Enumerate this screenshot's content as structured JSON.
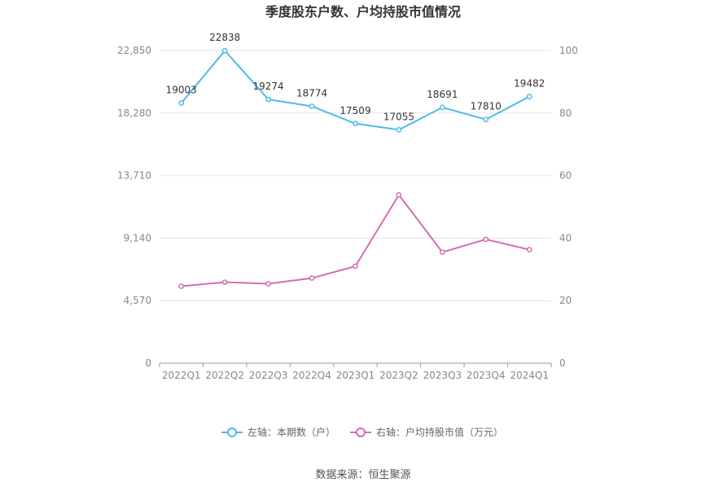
{
  "chart_data": {
    "type": "line",
    "title": "季度股东户数、户均持股市值情况",
    "categories": [
      "2022Q1",
      "2022Q2",
      "2022Q3",
      "2022Q4",
      "2023Q1",
      "2023Q2",
      "2023Q3",
      "2023Q4",
      "2024Q1"
    ],
    "left_axis": {
      "ylim": [
        0,
        22850
      ],
      "ticks": [
        "0",
        "4,570",
        "9,140",
        "13,710",
        "18,280",
        "22,850"
      ],
      "tick_values": [
        0,
        4570,
        9140,
        13710,
        18280,
        22850
      ]
    },
    "right_axis": {
      "ylim": [
        0,
        100
      ],
      "ticks": [
        "0",
        "20",
        "40",
        "60",
        "80",
        "100"
      ],
      "tick_values": [
        0,
        20,
        40,
        60,
        80,
        100
      ]
    },
    "series": [
      {
        "name": "左轴：本期数（户）",
        "axis": "left",
        "color": "#4dbbea",
        "values": [
          19003,
          22838,
          19274,
          18774,
          17509,
          17055,
          18691,
          17810,
          19482
        ],
        "labels": [
          "19003",
          "22838",
          "19274",
          "18774",
          "17509",
          "17055",
          "18691",
          "17810",
          "19482"
        ]
      },
      {
        "name": "右轴：户均持股市值（万元）",
        "axis": "right",
        "color": "#d56db0",
        "values": [
          24.6,
          25.9,
          25.4,
          27.2,
          31.0,
          53.8,
          35.5,
          39.6,
          36.3
        ]
      }
    ],
    "grid": true,
    "legend": "bottom-center",
    "source": "数据来源：恒生聚源"
  }
}
